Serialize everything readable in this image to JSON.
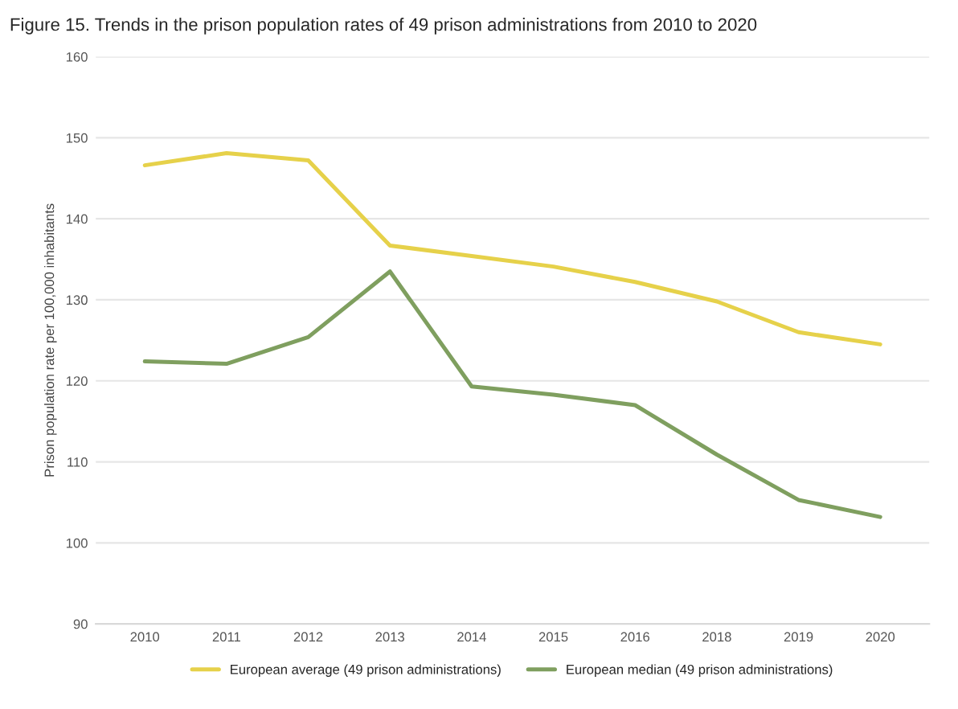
{
  "chart_data": {
    "type": "line",
    "title": "Figure 15. Trends in the prison population rates of 49 prison administrations from 2010 to 2020",
    "ylabel": "Prison population rate per 100,000 inhabitants",
    "categories": [
      "2010",
      "2011",
      "2012",
      "2013",
      "2014",
      "2015",
      "2016",
      "2018",
      "2019",
      "2020"
    ],
    "series": [
      {
        "name": "European average (49 prison administrations)",
        "color": "#e6d14a",
        "values": [
          146.6,
          148.1,
          147.2,
          136.7,
          135.4,
          134.1,
          132.2,
          129.8,
          126.0,
          124.5
        ]
      },
      {
        "name": "European median (49 prison administrations)",
        "color": "#7f9f5f",
        "values": [
          122.4,
          122.1,
          125.4,
          133.5,
          119.3,
          118.3,
          117.0,
          110.9,
          105.3,
          103.2
        ]
      }
    ],
    "ylim": [
      90,
      160
    ],
    "yticks": [
      90,
      100,
      110,
      120,
      130,
      140,
      150,
      160
    ],
    "grid": "y",
    "legend": "bottom",
    "line_style": "solid"
  }
}
